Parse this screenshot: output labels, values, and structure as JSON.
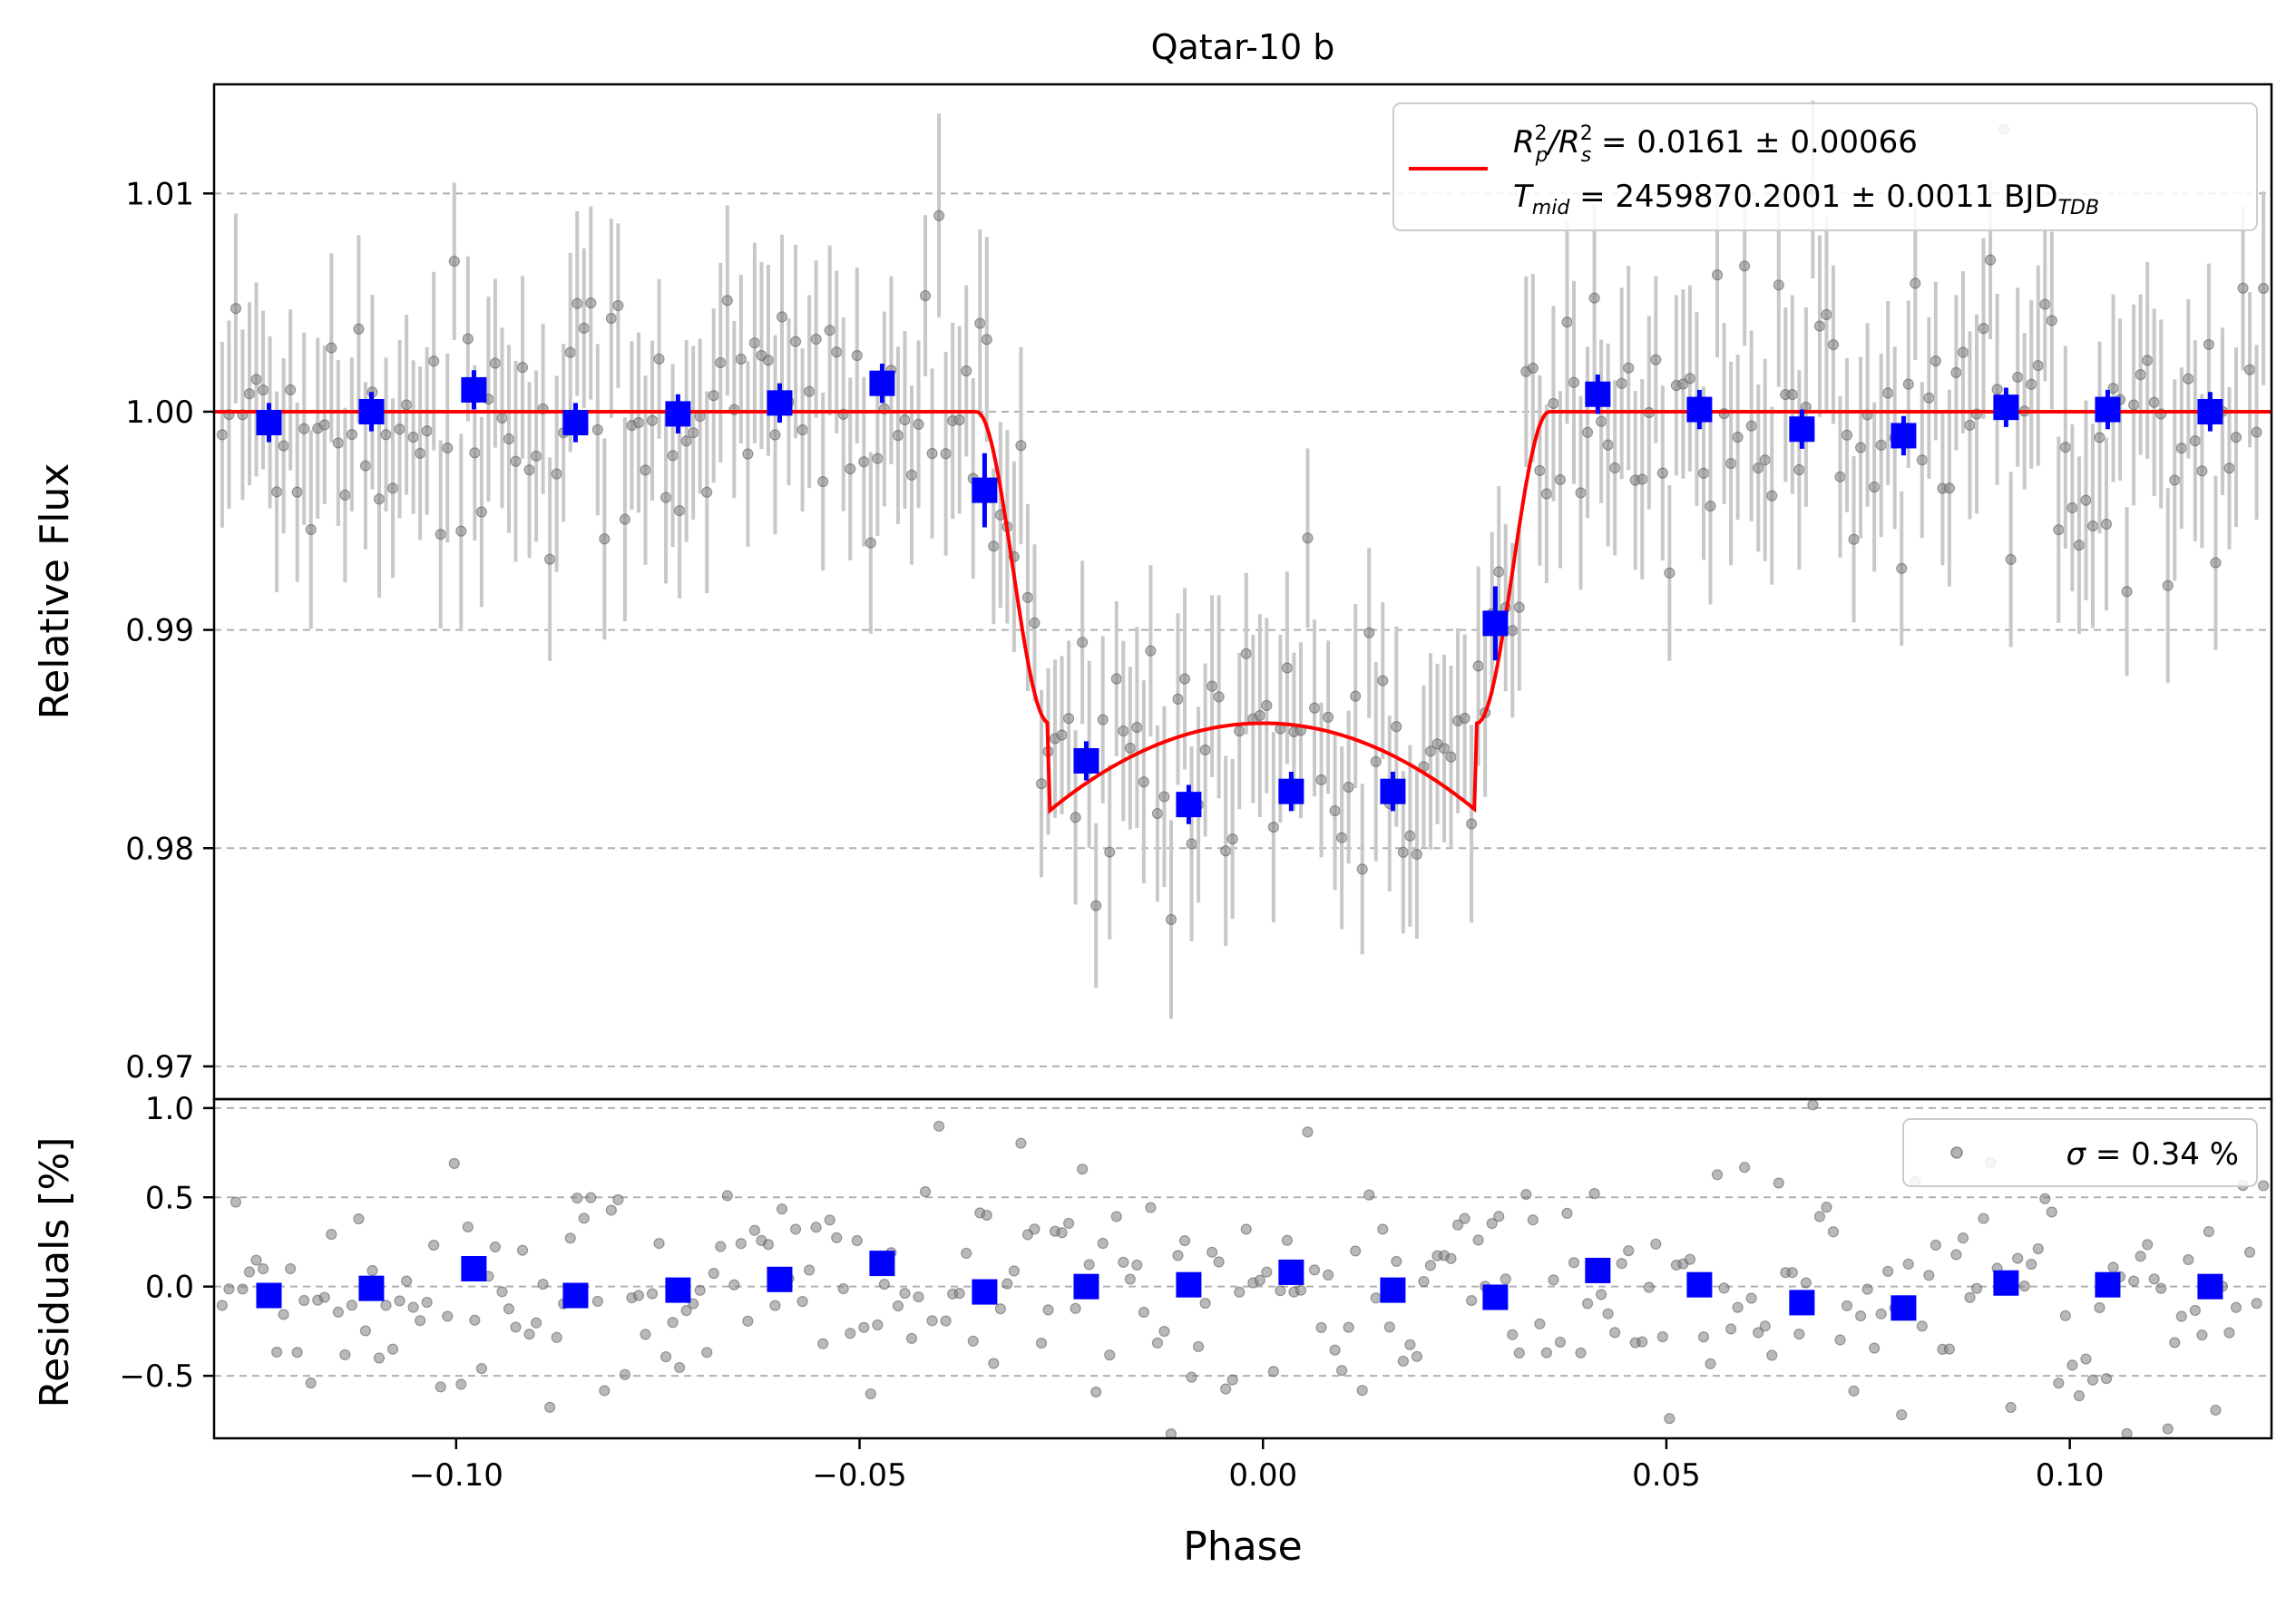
{
  "chart_data": [
    {
      "type": "scatter",
      "panel": "light-curve",
      "title": "Qatar-10 b",
      "ylabel": "Relative Flux",
      "xlim": [
        -0.13,
        0.125
      ],
      "ylim": [
        0.9685,
        1.015
      ],
      "grid": "horizontal dashed",
      "yticks": [
        0.97,
        0.98,
        0.99,
        1.0,
        1.01
      ],
      "ytick_labels": [
        "0.97",
        "0.98",
        "0.99",
        "1.00",
        "1.01"
      ],
      "legend_position": "top-right",
      "legend": {
        "rp_prefix": "R",
        "rp_sub": "p",
        "rp_sup": "2",
        "rs_prefix": "/R",
        "rs_sub": "s",
        "rs_sup": "2",
        "rp_value": " = 0.0161 ± 0.00066",
        "tmid_prefix": "T",
        "tmid_sub": "mid",
        "tmid_value": " = 2459870.2001 ± 0.0011 BJD",
        "tmid_unit_sub": "TDB"
      },
      "model": {
        "name": "transit model",
        "color": "#ff0000",
        "baseline": 1.0,
        "depth_min": 0.9817,
        "t1": -0.0355,
        "t2": -0.0265,
        "t3": 0.0265,
        "t4": 0.0355
      },
      "binned": {
        "color": "#0000ff",
        "x": [
          -0.1232,
          -0.1105,
          -0.0978,
          -0.0852,
          -0.0725,
          -0.0599,
          -0.0472,
          -0.0345,
          -0.0219,
          -0.0092,
          0.0035,
          0.0161,
          0.0288,
          0.0415,
          0.0541,
          0.0668,
          0.0794,
          0.0921,
          0.1047,
          0.1174
        ],
        "y": [
          0.9995,
          1.0,
          1.001,
          0.9995,
          0.9999,
          1.0004,
          1.0013,
          0.9964,
          0.984,
          0.982,
          0.9826,
          0.9826,
          0.9903,
          1.0008,
          1.0001,
          0.9992,
          0.9989,
          1.0002,
          1.0001,
          1.0
        ]
      },
      "raw": {
        "color": "#808080",
        "count": 300
      }
    },
    {
      "type": "scatter",
      "panel": "residuals",
      "xlabel": "Phase",
      "ylabel": "Residuals [%]",
      "xlim": [
        -0.13,
        0.125
      ],
      "ylim": [
        -0.85,
        1.05
      ],
      "grid": "horizontal dashed",
      "xticks": [
        -0.1,
        -0.05,
        0.0,
        0.05,
        0.1
      ],
      "xtick_labels": [
        "−0.10",
        "−0.05",
        "0.00",
        "0.05",
        "0.10"
      ],
      "yticks": [
        -0.5,
        0.0,
        0.5,
        1.0
      ],
      "ytick_labels": [
        "−0.5",
        "0.0",
        "0.5",
        "1.0"
      ],
      "legend_position": "top-right",
      "legend": {
        "sigma_symbol": "σ",
        "sigma_value": " = 0.34 %"
      },
      "binned": {
        "color": "#0000ff",
        "x": [
          -0.1232,
          -0.1105,
          -0.0978,
          -0.0852,
          -0.0725,
          -0.0599,
          -0.0472,
          -0.0345,
          -0.0219,
          -0.0092,
          0.0035,
          0.0161,
          0.0288,
          0.0415,
          0.0541,
          0.0668,
          0.0794,
          0.0921,
          0.1047,
          0.1174
        ],
        "y": [
          -0.05,
          -0.01,
          0.1,
          -0.05,
          -0.02,
          0.04,
          0.13,
          -0.03,
          0.0,
          0.01,
          0.08,
          -0.02,
          -0.06,
          0.09,
          0.01,
          -0.09,
          -0.12,
          0.02,
          0.01,
          0.0
        ]
      }
    }
  ]
}
